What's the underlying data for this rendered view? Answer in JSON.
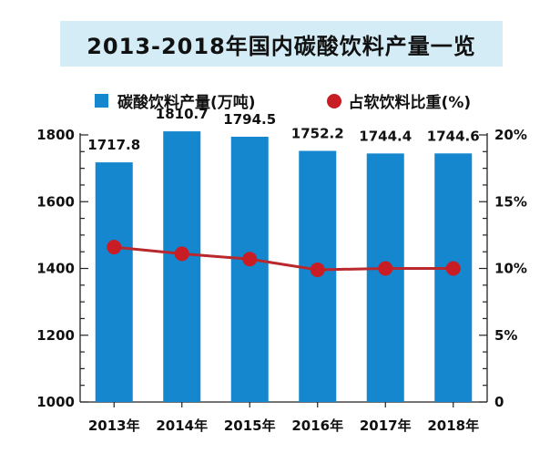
{
  "chart_data": {
    "type": "bar",
    "title": "2013-2018年国内碳酸饮料产量一览",
    "categories": [
      "2013年",
      "2014年",
      "2015年",
      "2016年",
      "2017年",
      "2018年"
    ],
    "series": [
      {
        "name": "碳酸饮料产量(万吨)",
        "type": "bar",
        "axis": "left",
        "values": [
          1717.8,
          1810.7,
          1794.5,
          1752.2,
          1744.4,
          1744.6
        ],
        "labels": [
          "1717.8",
          "1810.7",
          "1794.5",
          "1752.2",
          "1744.4",
          "1744.6"
        ],
        "color": "#1487cf"
      },
      {
        "name": "占软饮料比重(%)",
        "type": "line",
        "axis": "right",
        "values": [
          11.6,
          11.1,
          10.7,
          9.9,
          10.0,
          10.0
        ],
        "color": "#c81d25",
        "line_color": "#b8282d"
      }
    ],
    "y_left": {
      "ylim": [
        1000,
        1800
      ],
      "ticks": [
        1000,
        1200,
        1400,
        1600,
        1800
      ],
      "tick_labels": [
        "1000",
        "1200",
        "1400",
        "1600",
        "1800"
      ]
    },
    "y_right": {
      "ylim": [
        0,
        20
      ],
      "ticks": [
        0,
        5,
        10,
        15,
        20
      ],
      "tick_labels": [
        "0",
        "5%",
        "10%",
        "15%",
        "20%"
      ]
    },
    "legend": {
      "placement": "top-left",
      "bar_label": "碳酸饮料产量(万吨)",
      "line_label": "占软饮料比重(%)"
    },
    "grid": false
  }
}
